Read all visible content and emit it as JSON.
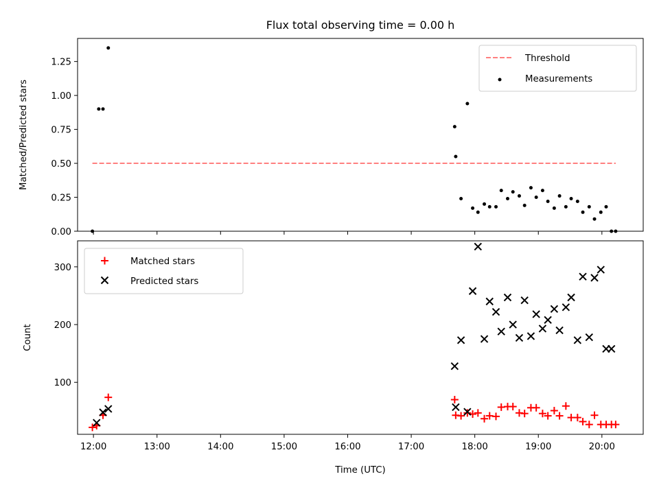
{
  "chart_data": [
    {
      "type": "scatter",
      "title": "Flux total observing time = 0.00 h",
      "xlabel": "",
      "ylabel": "Matched/Predicted stars",
      "xlim": [
        "11:45",
        "20:39"
      ],
      "ylim": [
        0,
        1.42
      ],
      "yticks": [
        "0.00",
        "0.25",
        "0.50",
        "0.75",
        "1.00",
        "1.25"
      ],
      "xticks_labeled": false,
      "grid": false,
      "legend_position": "top-right",
      "legend": [
        "Threshold",
        "Measurements"
      ],
      "series": [
        {
          "name": "Threshold",
          "style": "dashed-line",
          "color": "#ff7f7f",
          "x": [
            "11:59",
            "20:13"
          ],
          "y": [
            0.5,
            0.5
          ]
        },
        {
          "name": "Measurements",
          "style": "dot",
          "color": "#000000",
          "x": [
            "11:59",
            "12:05",
            "12:09",
            "12:14",
            "17:41",
            "17:42",
            "17:47",
            "17:53",
            "17:58",
            "18:03",
            "18:09",
            "18:14",
            "18:20",
            "18:25",
            "18:31",
            "18:36",
            "18:42",
            "18:47",
            "18:53",
            "18:58",
            "19:04",
            "19:09",
            "19:15",
            "19:20",
            "19:26",
            "19:31",
            "19:37",
            "19:42",
            "19:48",
            "19:53",
            "19:59",
            "20:04",
            "20:09",
            "20:13"
          ],
          "y": [
            0.0,
            0.9,
            0.9,
            1.35,
            0.77,
            0.55,
            0.24,
            0.94,
            0.17,
            0.14,
            0.2,
            0.18,
            0.18,
            0.3,
            0.24,
            0.29,
            0.26,
            0.19,
            0.32,
            0.25,
            0.3,
            0.22,
            0.17,
            0.26,
            0.18,
            0.24,
            0.22,
            0.14,
            0.18,
            0.09,
            0.14,
            0.18,
            0.0,
            0.0
          ]
        }
      ]
    },
    {
      "type": "scatter",
      "title": "",
      "xlabel": "Time (UTC)",
      "ylabel": "Count",
      "xlim": [
        "11:45",
        "20:39"
      ],
      "ylim": [
        10,
        345
      ],
      "yticks": [
        "100",
        "200",
        "300"
      ],
      "xticks": [
        "12:00",
        "13:00",
        "14:00",
        "15:00",
        "16:00",
        "17:00",
        "18:00",
        "19:00",
        "20:00"
      ],
      "grid": false,
      "legend_position": "top-left",
      "legend": [
        "Matched stars",
        "Predicted stars"
      ],
      "series": [
        {
          "name": "Matched stars",
          "marker": "plus",
          "color": "#ff0000",
          "x": [
            "11:59",
            "12:03",
            "12:09",
            "12:14",
            "17:41",
            "17:42",
            "17:47",
            "17:53",
            "17:58",
            "18:03",
            "18:09",
            "18:14",
            "18:20",
            "18:25",
            "18:31",
            "18:36",
            "18:42",
            "18:47",
            "18:53",
            "18:58",
            "19:04",
            "19:09",
            "19:15",
            "19:20",
            "19:26",
            "19:31",
            "19:37",
            "19:42",
            "19:48",
            "19:53",
            "19:59",
            "20:04",
            "20:09",
            "20:13"
          ],
          "y": [
            22,
            25,
            43,
            74,
            70,
            43,
            42,
            47,
            45,
            47,
            37,
            42,
            41,
            57,
            58,
            58,
            47,
            46,
            56,
            56,
            46,
            42,
            51,
            42,
            59,
            39,
            39,
            32,
            27,
            43,
            27,
            27,
            27,
            27
          ]
        },
        {
          "name": "Predicted stars",
          "marker": "x",
          "color": "#000000",
          "x": [
            "12:03",
            "12:09",
            "12:14",
            "17:41",
            "17:42",
            "17:47",
            "17:53",
            "17:58",
            "18:03",
            "18:09",
            "18:14",
            "18:20",
            "18:25",
            "18:31",
            "18:36",
            "18:42",
            "18:47",
            "18:53",
            "18:58",
            "19:04",
            "19:09",
            "19:15",
            "19:20",
            "19:26",
            "19:31",
            "19:37",
            "19:42",
            "19:48",
            "19:53",
            "19:59",
            "20:04",
            "20:09"
          ],
          "y": [
            30,
            48,
            54,
            128,
            57,
            173,
            49,
            258,
            335,
            175,
            240,
            222,
            188,
            247,
            200,
            177,
            242,
            180,
            218,
            193,
            208,
            227,
            190,
            230,
            247,
            173,
            283,
            178,
            281,
            295,
            158,
            158
          ]
        }
      ]
    }
  ]
}
